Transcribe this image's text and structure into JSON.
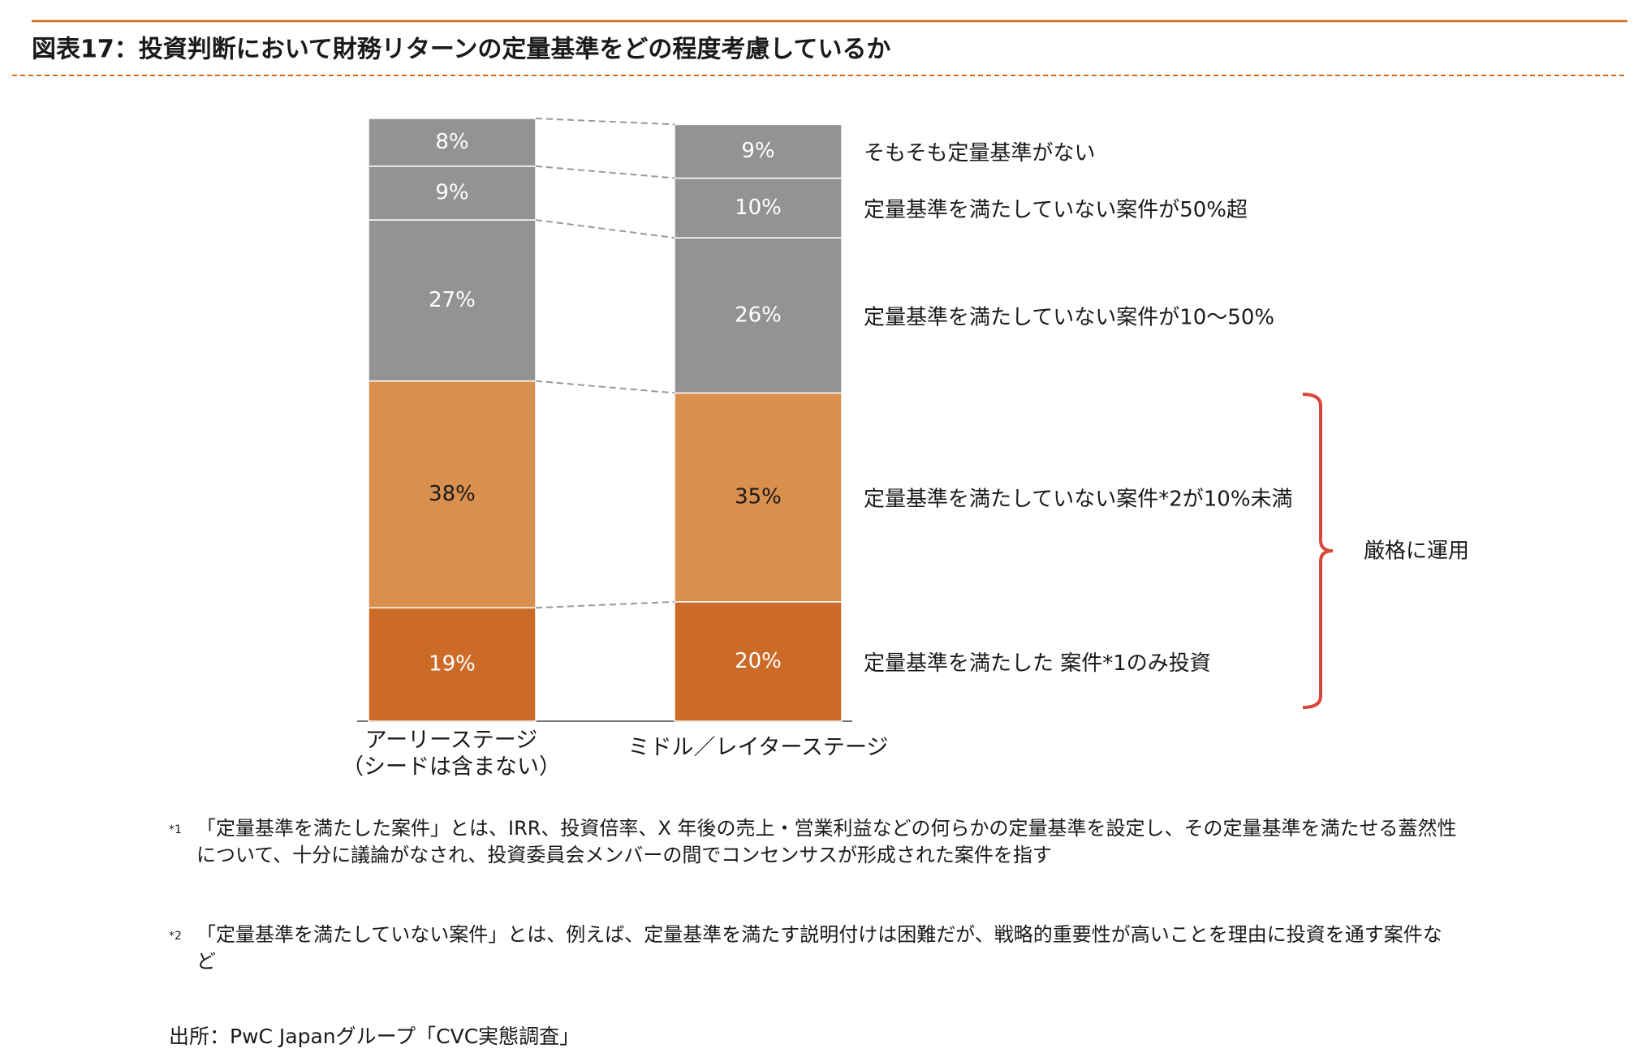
{
  "chart_data": {
    "type": "stacked-bar",
    "title": "図表17：投資判断において財務リターンの定量基準をどの程度考慮しているか",
    "categories": [
      "アーリーステージ\n（シードは含まない）",
      "ミドル／レイターステージ"
    ],
    "series": [
      {
        "name": "定量基準を満たした 案件*1のみ投資",
        "color": "#cc6b28",
        "label_color": "#ffffff",
        "values": [
          19,
          20
        ],
        "value_labels": [
          "19%",
          "20%"
        ]
      },
      {
        "name": "定量基準を満たしていない案件*2が10%未満",
        "color": "#d98f4e",
        "label_color": "#1a1a1a",
        "values": [
          38,
          35
        ],
        "value_labels": [
          "38%",
          "35%"
        ]
      },
      {
        "name": "定量基準を満たしていない案件が10〜50%",
        "color": "#939393",
        "label_color": "#ffffff",
        "values": [
          27,
          26
        ],
        "value_labels": [
          "27%",
          "26%"
        ]
      },
      {
        "name": "定量基準を満たしていない案件が50%超",
        "color": "#939393",
        "label_color": "#ffffff",
        "values": [
          9,
          10
        ],
        "value_labels": [
          "9%",
          "10%"
        ]
      },
      {
        "name": "そもそも定量基準がない",
        "color": "#939393",
        "label_color": "#ffffff",
        "values": [
          8,
          9
        ],
        "value_labels": [
          "8%",
          "9%"
        ]
      }
    ],
    "ylim": [
      0,
      101
    ],
    "annotation": "厳格に運用"
  },
  "footnotes": [
    {
      "marker": "*1",
      "text": "「定量基準を満たした案件」とは、IRR、投資倍率、X 年後の売上・営業利益などの何らかの定量基準を設定し、その定量基準を満たせる蓋然性について、十分に議論がなされ、投資委員会メンバーの間でコンセンサスが形成された案件を指す"
    },
    {
      "marker": "*2",
      "text": "「定量基準を満たしていない案件」とは、例えば、定量基準を満たす説明付けは困難だが、戦略的重要性が高いことを理由に投資を通す案件など"
    }
  ],
  "source": "出所：PwC Japanグループ「CVC実態調査」"
}
